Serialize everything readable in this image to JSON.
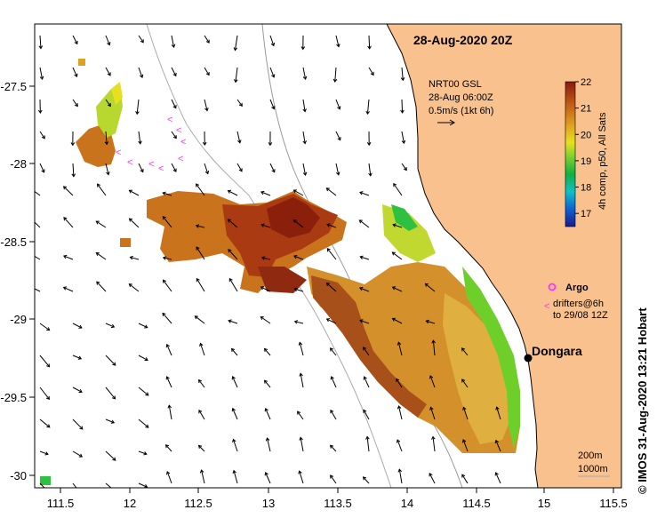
{
  "title": "28-Aug-2020 20Z",
  "current_legend": {
    "line1": "NRT00 GSL",
    "line2": "28-Aug 06:00Z",
    "line3": "0.5m/s (1kt 6h)"
  },
  "colorbar": {
    "label": "4h comp, p50, All Sats",
    "ticks": [
      "22",
      "21",
      "20",
      "19",
      "18",
      "17"
    ],
    "min": 16.5,
    "max": 22
  },
  "legend_argo": "Argo",
  "legend_drifters_1": "drifters@6h",
  "legend_drifters_2": "to 29/08 12Z",
  "place": "Dongara",
  "isobaths": {
    "deep": "200m",
    "deeper": "1000m"
  },
  "x_ticks": [
    "111.5",
    "12",
    "112.5",
    "13",
    "113.5",
    "14",
    "114.5",
    "15",
    "115.5"
  ],
  "y_ticks": [
    "-27.5",
    "-28",
    "-28.5",
    "-29",
    "-29.5",
    "-30"
  ],
  "credit": "©  IMOS 31-Aug-2020 13:21 Hobart",
  "colors": {
    "land": "#f8c18e",
    "sea": "#ffffff",
    "sst_warm": "#a93a12",
    "sst_mid": "#d1861f",
    "sst_cool": "#8fd22a",
    "argo": "#ff33ff"
  }
}
